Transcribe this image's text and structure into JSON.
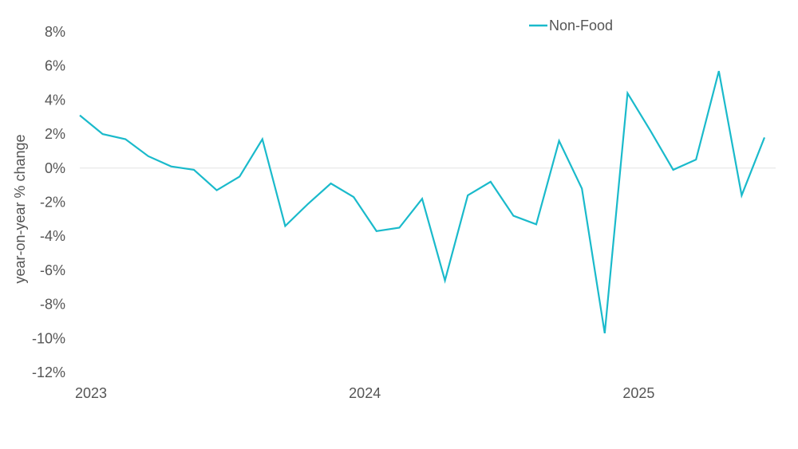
{
  "chart_data": {
    "type": "line",
    "title": "",
    "xlabel": "",
    "ylabel": "year-on-year % change",
    "ylim": [
      -12,
      8
    ],
    "yticks": [
      8,
      6,
      4,
      2,
      0,
      -2,
      -4,
      -6,
      -8,
      -10,
      -12
    ],
    "ytick_format": "%",
    "x_ticks": [
      "2023",
      "2024",
      "2025"
    ],
    "grid": false,
    "zero_line": true,
    "legend_position": "top-center",
    "series": [
      {
        "name": "Non-Food",
        "color": "#1ABACB",
        "x": [
          "2023-01",
          "2023-02",
          "2023-03",
          "2023-04",
          "2023-05",
          "2023-06",
          "2023-07",
          "2023-08",
          "2023-09",
          "2023-10",
          "2023-11",
          "2023-12",
          "2024-01",
          "2024-02",
          "2024-03",
          "2024-04",
          "2024-05",
          "2024-06",
          "2024-07",
          "2024-08",
          "2024-09",
          "2024-10",
          "2024-11",
          "2024-12",
          "2025-01",
          "2025-02",
          "2025-03",
          "2025-04",
          "2025-05",
          "2025-06",
          "2025-07"
        ],
        "values": [
          3.1,
          2.0,
          1.7,
          0.7,
          0.1,
          -0.1,
          -1.3,
          -0.5,
          1.7,
          -3.4,
          -2.1,
          -0.9,
          -1.7,
          -3.7,
          -3.5,
          -1.8,
          -6.6,
          -1.6,
          -0.8,
          -2.8,
          -3.3,
          1.6,
          -1.2,
          -9.7,
          4.4,
          2.2,
          -0.1,
          0.5,
          5.7,
          -1.6,
          1.8
        ]
      }
    ]
  }
}
